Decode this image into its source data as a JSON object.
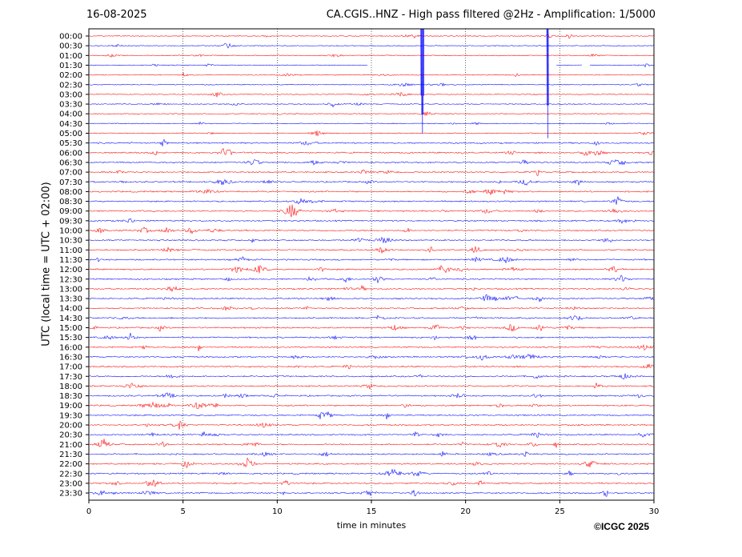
{
  "header": {
    "date": "16-08-2025",
    "title": "CA.CGIS..HNZ - High pass filtered @2Hz - Amplification: 1/5000"
  },
  "footer": {
    "copyright": "©ICGC 2025"
  },
  "chart_data": {
    "type": "line",
    "xlabel": "time in minutes",
    "ylabel": "UTC (local time = UTC + 02:00)",
    "xlim": [
      0,
      30
    ],
    "xticks": [
      0,
      5,
      10,
      15,
      20,
      25,
      30
    ],
    "grid": "vertical dotted at 5-minute ticks",
    "row_colors": [
      "#ff0000",
      "#0000ff"
    ],
    "rows": [
      "00:00",
      "00:30",
      "01:00",
      "01:30",
      "02:00",
      "02:30",
      "03:00",
      "03:30",
      "04:00",
      "04:30",
      "05:00",
      "05:30",
      "06:00",
      "06:30",
      "07:00",
      "07:30",
      "08:00",
      "08:30",
      "09:00",
      "09:30",
      "10:00",
      "10:30",
      "11:00",
      "11:30",
      "12:00",
      "12:30",
      "13:00",
      "13:30",
      "14:00",
      "14:30",
      "15:00",
      "15:30",
      "16:00",
      "16:30",
      "17:00",
      "17:30",
      "18:00",
      "18:30",
      "19:00",
      "19:30",
      "20:00",
      "20:30",
      "21:00",
      "21:30",
      "22:00",
      "22:30",
      "23:00",
      "23:30"
    ],
    "gaps": [
      {
        "row": "01:30",
        "from_min": 14.8,
        "to_min": 24.8
      },
      {
        "row": "01:30",
        "from_min": 26.2,
        "to_min": 26.6
      }
    ],
    "large_events": [
      {
        "row": "00:00",
        "time_min": 17.7
      },
      {
        "row": "00:00",
        "time_min": 24.35
      }
    ]
  }
}
